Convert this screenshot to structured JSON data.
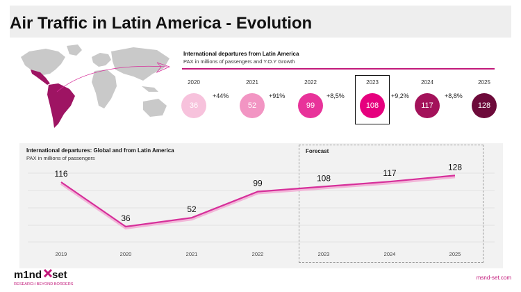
{
  "title": "Air Traffic in Latin America - Evolution",
  "top_panel": {
    "title": "International departures from Latin America",
    "subtitle": "PAX in millions of passengers and Y.O.Y Growth",
    "years": [
      "2020",
      "2021",
      "2022",
      "2023",
      "2024",
      "2025"
    ],
    "values": [
      "36",
      "52",
      "99",
      "108",
      "117",
      "128"
    ],
    "growth": [
      "+44%",
      "+91%",
      "+8,5%",
      "+9,2%",
      "+8,8%"
    ],
    "circle_colors": [
      "#f7c2dc",
      "#f295c3",
      "#e8339a",
      "#e6007e",
      "#a3125a",
      "#6d0a3a"
    ],
    "highlighted_year": "2023"
  },
  "bottom_panel": {
    "title": "International departures: Global and from Latin America",
    "subtitle": "PAX in millions of passengers",
    "forecast_label": "Forecast"
  },
  "chart_data": {
    "type": "line",
    "title": "International departures: Global and from Latin America",
    "x": [
      "2019",
      "2020",
      "2021",
      "2022",
      "2023",
      "2024",
      "2025"
    ],
    "series": [
      {
        "values": [
          116,
          36,
          52,
          99,
          108,
          117,
          128
        ]
      }
    ],
    "ylim": [
      0,
      140
    ],
    "grid": true,
    "forecast_years": [
      "2023",
      "2024",
      "2025"
    ],
    "line_color": "#d62f9a"
  },
  "footer": {
    "logo_text_1": "m1nd",
    "logo_text_2": "set",
    "logo_tagline": "RESEARCH BEYOND BORDERS",
    "website": "msnd-set.com"
  }
}
